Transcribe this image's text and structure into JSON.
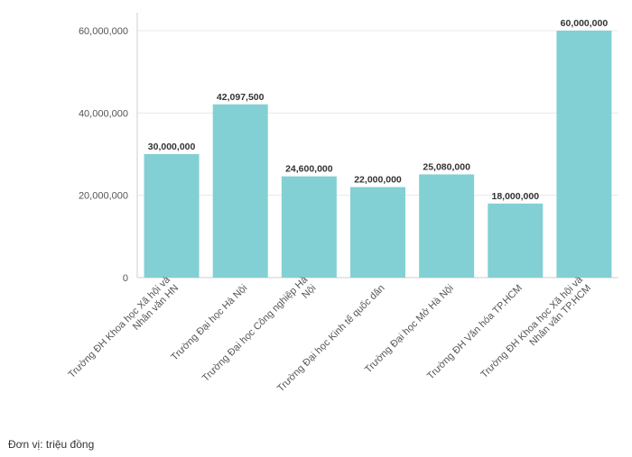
{
  "chart_data": {
    "type": "bar",
    "categories": [
      "Trường ĐH Khoa học Xã hội và Nhân văn HN",
      "Trường Đại học Hà Nội",
      "Trường Đại học Công nghiệp Hà Nội",
      "Trường Đại học Kinh tế quốc dân",
      "Trường Đại học Mở Hà Nội",
      "Trường ĐH Văn hóa TP.HCM",
      "Trường ĐH Khoa học Xã hội và Nhân văn TP.HCM"
    ],
    "category_lines": [
      [
        "Trường ĐH Khoa học Xã hội và",
        "Nhân văn HN"
      ],
      [
        "Trường Đại học Hà Nội"
      ],
      [
        "Trường Đại học Công nghiệp Hà",
        "Nội"
      ],
      [
        "Trường Đại học Kinh tế quốc dân"
      ],
      [
        "Trường Đại học Mở Hà Nội"
      ],
      [
        "Trường ĐH Văn hóa TP.HCM"
      ],
      [
        "Trường ĐH Khoa học Xã hội và",
        "Nhân văn TP.HCM"
      ]
    ],
    "values": [
      30000000,
      42097500,
      24600000,
      22000000,
      25080000,
      18000000,
      60000000
    ],
    "data_labels": [
      "30,000,000",
      "42,097,500",
      "24,600,000",
      "22,000,000",
      "25,080,000",
      "18,000,000",
      "60,000,000"
    ],
    "yticks": [
      0,
      20000000,
      40000000,
      60000000
    ],
    "ytick_labels": [
      "0",
      "20,000,000",
      "40,000,000",
      "60,000,000"
    ],
    "ylim": [
      0,
      60000000
    ],
    "bar_color": "#82d0d4",
    "grid": true,
    "note": "Đơn vị: triệu đồng"
  }
}
